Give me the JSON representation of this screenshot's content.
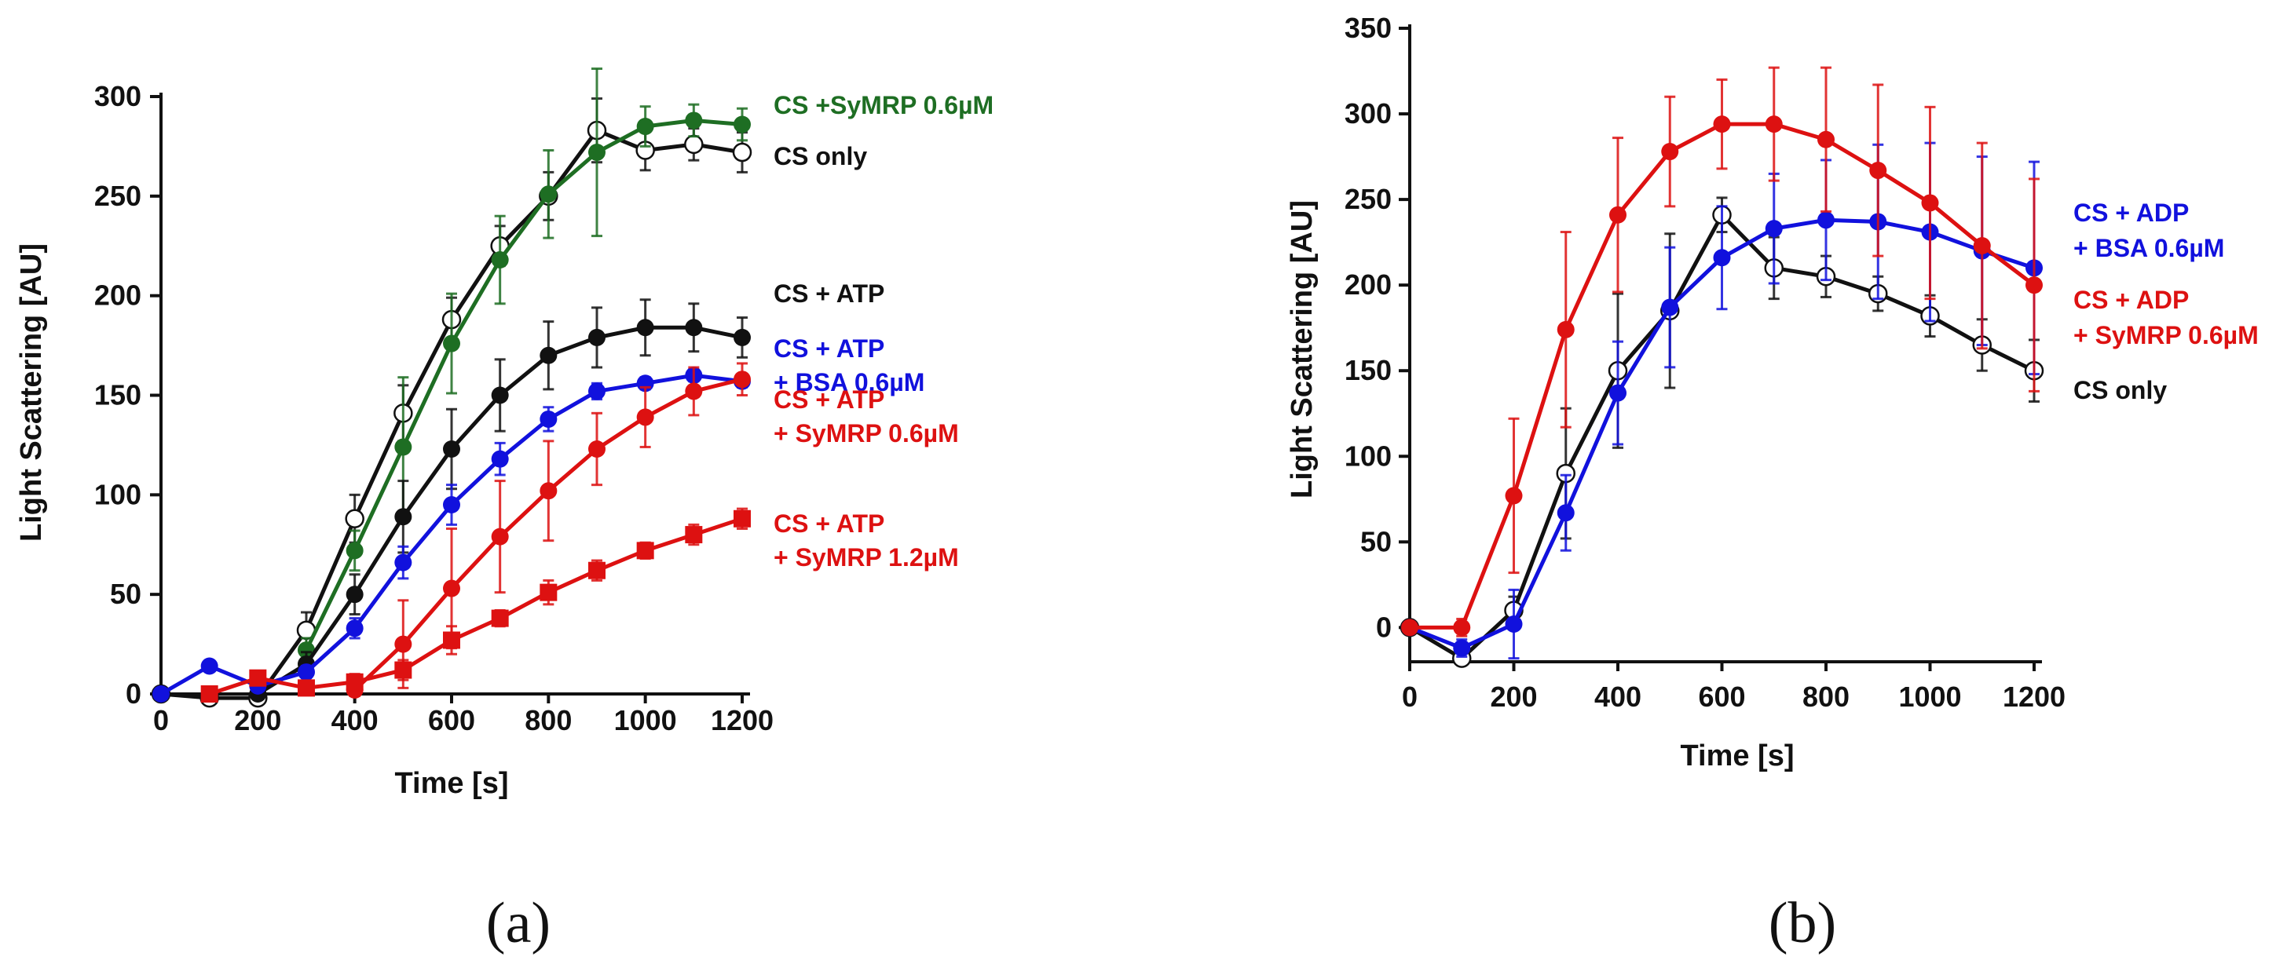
{
  "chart_data": [
    {
      "panel": "(a)",
      "type": "line",
      "xlabel": "Time [s]",
      "ylabel": "Light Scattering [AU]",
      "xlim": [
        0,
        1200
      ],
      "ylim": [
        0,
        300
      ],
      "xticks": [
        0,
        200,
        400,
        600,
        800,
        1000,
        1200
      ],
      "yticks": [
        0,
        50,
        100,
        150,
        200,
        250,
        300
      ],
      "series": [
        {
          "name": "CS only",
          "label_lines": [
            "CS only"
          ],
          "color": "#111111",
          "marker": "open-circle",
          "x": [
            0,
            100,
            200,
            300,
            400,
            500,
            600,
            700,
            800,
            900,
            1000,
            1100,
            1200
          ],
          "y": [
            0,
            -2,
            -2,
            32,
            88,
            141,
            188,
            225,
            250,
            283,
            273,
            276,
            272
          ],
          "err": [
            0,
            0,
            0,
            9,
            12,
            14,
            11,
            10,
            12,
            16,
            10,
            8,
            10
          ]
        },
        {
          "name": "CS + SyMRP 0.6µM",
          "label_lines": [
            "CS +SyMRP 0.6µM"
          ],
          "color": "#1e6e23",
          "marker": "circle",
          "x": [
            300,
            400,
            500,
            600,
            700,
            800,
            900,
            1000,
            1100,
            1200
          ],
          "y": [
            22,
            72,
            124,
            176,
            218,
            251,
            272,
            285,
            288,
            286
          ],
          "err": [
            6,
            10,
            35,
            25,
            22,
            22,
            42,
            10,
            8,
            8
          ]
        },
        {
          "name": "CS + ATP",
          "label_lines": [
            "CS + ATP"
          ],
          "color": "#111111",
          "marker": "circle",
          "x": [
            200,
            300,
            400,
            500,
            600,
            700,
            800,
            900,
            1000,
            1100,
            1200
          ],
          "y": [
            0,
            15,
            50,
            89,
            123,
            150,
            170,
            179,
            184,
            184,
            179
          ],
          "err": [
            0,
            6,
            10,
            18,
            20,
            18,
            17,
            15,
            14,
            12,
            10
          ]
        },
        {
          "name": "CS + ATP + BSA 0.6µM",
          "label_lines": [
            "CS + ATP",
            "+ BSA 0.6µM"
          ],
          "color": "#1111dd",
          "marker": "circle",
          "x": [
            0,
            100,
            200,
            300,
            400,
            500,
            600,
            700,
            800,
            900,
            1000,
            1100,
            1200
          ],
          "y": [
            0,
            14,
            4,
            11,
            33,
            66,
            95,
            118,
            138,
            152,
            156,
            160,
            157
          ],
          "err": [
            0,
            0,
            0,
            3,
            5,
            8,
            10,
            8,
            6,
            4,
            3,
            3,
            3
          ]
        },
        {
          "name": "CS + ATP + SyMRP 0.6µM",
          "label_lines": [
            "CS + ATP",
            "+ SyMRP 0.6µM"
          ],
          "color": "#dd1111",
          "marker": "circle",
          "x": [
            400,
            500,
            600,
            700,
            800,
            900,
            1000,
            1100,
            1200
          ],
          "y": [
            2,
            25,
            53,
            79,
            102,
            123,
            139,
            152,
            158
          ],
          "err": [
            3,
            22,
            30,
            28,
            25,
            18,
            15,
            12,
            8
          ]
        },
        {
          "name": "CS + ATP + SyMRP 1.2µM",
          "label_lines": [
            "CS + ATP",
            "+ SyMRP 1.2µM"
          ],
          "color": "#dd1111",
          "marker": "square",
          "x": [
            100,
            200,
            300,
            400,
            500,
            600,
            700,
            800,
            900,
            1000,
            1100,
            1200
          ],
          "y": [
            0,
            8,
            3,
            6,
            12,
            27,
            38,
            51,
            62,
            72,
            80,
            88
          ],
          "err": [
            0,
            0,
            0,
            4,
            5,
            7,
            4,
            6,
            5,
            4,
            5,
            5
          ]
        }
      ]
    },
    {
      "panel": "(b)",
      "type": "line",
      "xlabel": "Time [s]",
      "ylabel": "Light Scattering [AU]",
      "xlim": [
        0,
        1200
      ],
      "ylim": [
        -20,
        350
      ],
      "xticks": [
        0,
        200,
        400,
        600,
        800,
        1000,
        1200
      ],
      "yticks": [
        0,
        50,
        100,
        150,
        200,
        250,
        300,
        350
      ],
      "series": [
        {
          "name": "CS only",
          "label_lines": [
            "CS only"
          ],
          "color": "#111111",
          "marker": "open-circle",
          "x": [
            0,
            100,
            200,
            300,
            400,
            500,
            600,
            700,
            800,
            900,
            1000,
            1100,
            1200
          ],
          "y": [
            0,
            -18,
            10,
            90,
            150,
            185,
            241,
            210,
            205,
            195,
            182,
            165,
            150
          ],
          "err": [
            0,
            3,
            8,
            38,
            45,
            45,
            10,
            18,
            12,
            10,
            12,
            15,
            18
          ]
        },
        {
          "name": "CS + ADP + BSA 0.6µM",
          "label_lines": [
            "CS + ADP",
            "+ BSA 0.6µM"
          ],
          "color": "#1111dd",
          "marker": "circle",
          "x": [
            0,
            100,
            200,
            300,
            400,
            500,
            600,
            700,
            800,
            900,
            1000,
            1100,
            1200
          ],
          "y": [
            0,
            -12,
            2,
            67,
            137,
            187,
            216,
            233,
            238,
            237,
            231,
            220,
            210
          ],
          "err": [
            0,
            5,
            20,
            22,
            30,
            35,
            30,
            32,
            35,
            45,
            52,
            55,
            62
          ]
        },
        {
          "name": "CS + ADP + SyMRP 0.6µM",
          "label_lines": [
            "CS + ADP",
            "+ SyMRP 0.6µM"
          ],
          "color": "#dd1111",
          "marker": "circle",
          "x": [
            0,
            100,
            200,
            300,
            400,
            500,
            600,
            700,
            800,
            900,
            1000,
            1100,
            1200
          ],
          "y": [
            0,
            0,
            77,
            174,
            241,
            278,
            294,
            294,
            285,
            267,
            248,
            223,
            200
          ],
          "err": [
            0,
            5,
            45,
            57,
            45,
            32,
            26,
            33,
            42,
            50,
            56,
            60,
            62
          ]
        }
      ]
    }
  ]
}
